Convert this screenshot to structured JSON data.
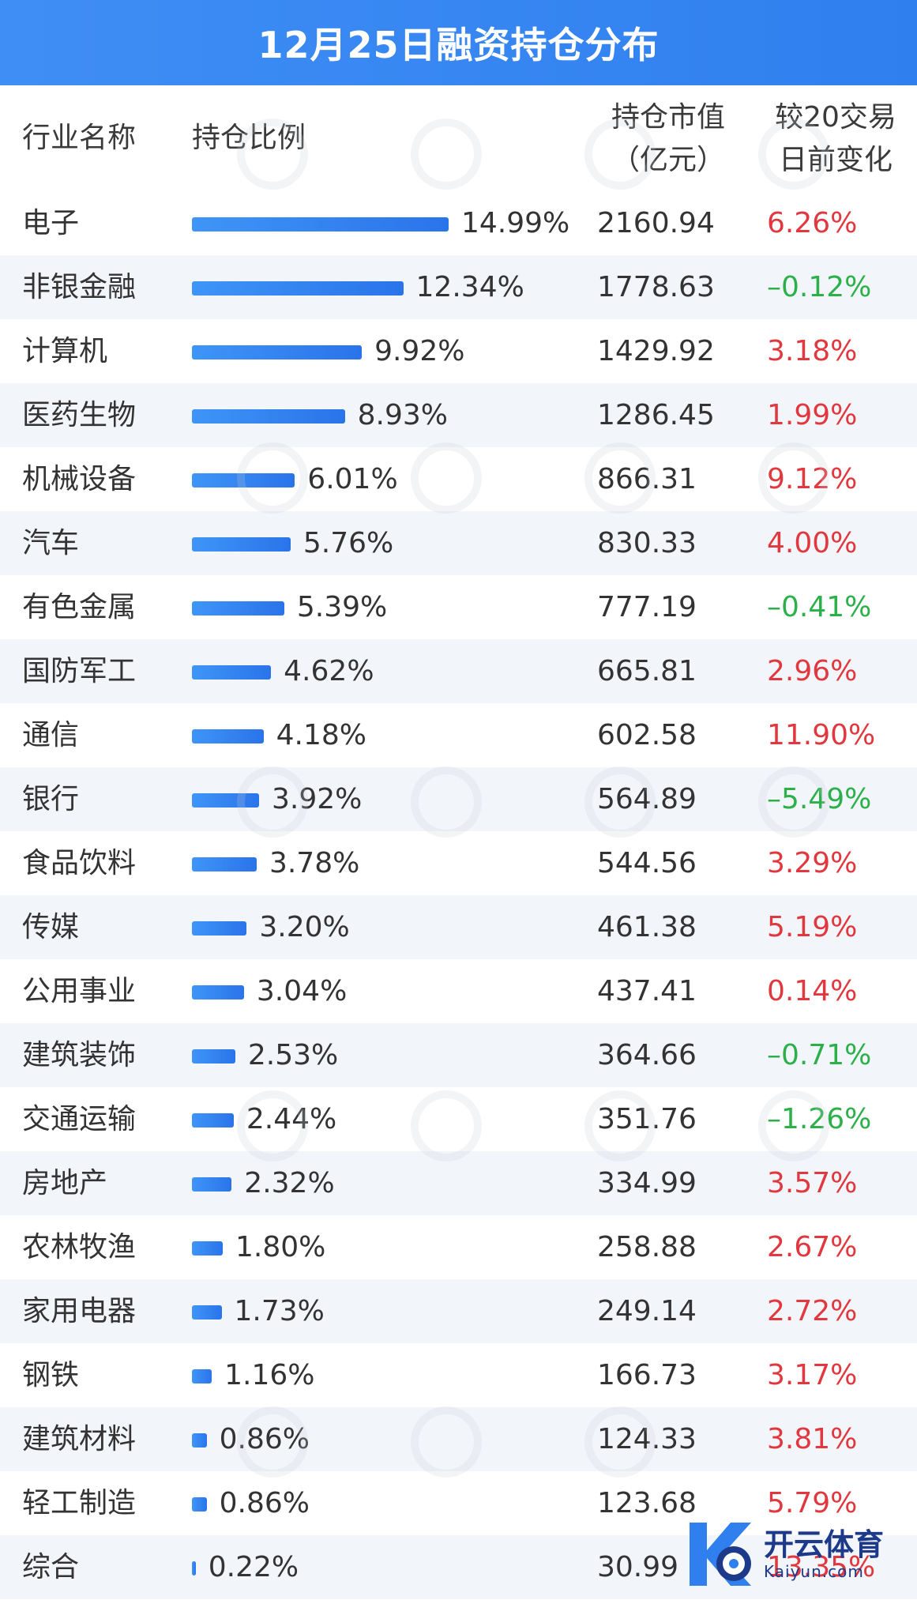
{
  "title": "12月25日融资持仓分布",
  "columns": {
    "industry": "行业名称",
    "ratio": "持仓比例",
    "value_line1": "持仓市值",
    "value_line2": "（亿元）",
    "change_line1": "较20交易",
    "change_line2": "日前变化"
  },
  "colors": {
    "header": "#3f8ef5",
    "bar": "#2f80ee",
    "positive": "#e0383e",
    "negative": "#2bb04a",
    "alt_row": "#f2f5fa"
  },
  "chart_data": {
    "type": "table",
    "title": "12月25日融资持仓分布",
    "rows": [
      {
        "industry": "电子",
        "ratio": 14.99,
        "ratio_label": "14.99%",
        "value": "2160.94",
        "change": "6.26%"
      },
      {
        "industry": "非银金融",
        "ratio": 12.34,
        "ratio_label": "12.34%",
        "value": "1778.63",
        "change": "–0.12%"
      },
      {
        "industry": "计算机",
        "ratio": 9.92,
        "ratio_label": "9.92%",
        "value": "1429.92",
        "change": "3.18%"
      },
      {
        "industry": "医药生物",
        "ratio": 8.93,
        "ratio_label": "8.93%",
        "value": "1286.45",
        "change": "1.99%"
      },
      {
        "industry": "机械设备",
        "ratio": 6.01,
        "ratio_label": "6.01%",
        "value": "866.31",
        "change": "9.12%"
      },
      {
        "industry": "汽车",
        "ratio": 5.76,
        "ratio_label": "5.76%",
        "value": "830.33",
        "change": "4.00%"
      },
      {
        "industry": "有色金属",
        "ratio": 5.39,
        "ratio_label": "5.39%",
        "value": "777.19",
        "change": "–0.41%"
      },
      {
        "industry": "国防军工",
        "ratio": 4.62,
        "ratio_label": "4.62%",
        "value": "665.81",
        "change": "2.96%"
      },
      {
        "industry": "通信",
        "ratio": 4.18,
        "ratio_label": "4.18%",
        "value": "602.58",
        "change": "11.90%"
      },
      {
        "industry": "银行",
        "ratio": 3.92,
        "ratio_label": "3.92%",
        "value": "564.89",
        "change": "–5.49%"
      },
      {
        "industry": "食品饮料",
        "ratio": 3.78,
        "ratio_label": "3.78%",
        "value": "544.56",
        "change": "3.29%"
      },
      {
        "industry": "传媒",
        "ratio": 3.2,
        "ratio_label": "3.20%",
        "value": "461.38",
        "change": "5.19%"
      },
      {
        "industry": "公用事业",
        "ratio": 3.04,
        "ratio_label": "3.04%",
        "value": "437.41",
        "change": "0.14%"
      },
      {
        "industry": "建筑装饰",
        "ratio": 2.53,
        "ratio_label": "2.53%",
        "value": "364.66",
        "change": "–0.71%"
      },
      {
        "industry": "交通运输",
        "ratio": 2.44,
        "ratio_label": "2.44%",
        "value": "351.76",
        "change": "–1.26%"
      },
      {
        "industry": "房地产",
        "ratio": 2.32,
        "ratio_label": "2.32%",
        "value": "334.99",
        "change": "3.57%"
      },
      {
        "industry": "农林牧渔",
        "ratio": 1.8,
        "ratio_label": "1.80%",
        "value": "258.88",
        "change": "2.67%"
      },
      {
        "industry": "家用电器",
        "ratio": 1.73,
        "ratio_label": "1.73%",
        "value": "249.14",
        "change": "2.72%"
      },
      {
        "industry": "钢铁",
        "ratio": 1.16,
        "ratio_label": "1.16%",
        "value": "166.73",
        "change": "3.17%"
      },
      {
        "industry": "建筑材料",
        "ratio": 0.86,
        "ratio_label": "0.86%",
        "value": "124.33",
        "change": "3.81%"
      },
      {
        "industry": "轻工制造",
        "ratio": 0.86,
        "ratio_label": "0.86%",
        "value": "123.68",
        "change": "5.79%"
      },
      {
        "industry": "综合",
        "ratio": 0.22,
        "ratio_label": "0.22%",
        "value": "30.99",
        "change": "13.35%"
      }
    ]
  },
  "logo": {
    "cn": "开云体育",
    "en": "Kaiyun.com"
  }
}
